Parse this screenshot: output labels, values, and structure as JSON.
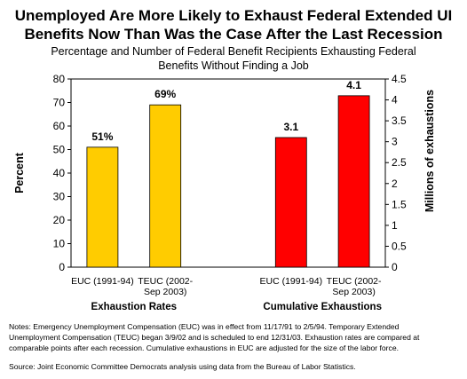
{
  "title_lines": [
    "Unemployed Are More Likely to Exhaust Federal Extended UI",
    "Benefits Now Than Was the Case After the Last Recession"
  ],
  "subtitle_lines": [
    "Percentage and Number of Federal Benefit Recipients Exhausting Federal",
    "Benefits Without Finding a Job"
  ],
  "chart_data": {
    "type": "bar",
    "title": "Unemployed Are More Likely to Exhaust Federal Extended UI Benefits Now Than Was the Case After the Last Recession",
    "subtitle": "Percentage and Number of Federal Benefit Recipients Exhausting Federal Benefits Without Finding a Job",
    "ylabel": "Percent",
    "y2label": "Millions of exhaustions",
    "ylim": [
      0,
      80
    ],
    "yticks": [
      "0",
      "10",
      "20",
      "30",
      "40",
      "50",
      "60",
      "70",
      "80"
    ],
    "y2lim": [
      0,
      4.5
    ],
    "y2ticks": [
      "0",
      "0.5",
      "1",
      "1.5",
      "2",
      "2.5",
      "3",
      "3.5",
      "4",
      "4.5"
    ],
    "grid": false,
    "groups": [
      {
        "name": "Exhaustion Rates",
        "axis": "left",
        "color": "#ffcc00",
        "categories": [
          [
            "EUC (1991-94)"
          ],
          [
            "TEUC (2002-",
            "Sep 2003)"
          ]
        ],
        "values": [
          51,
          69
        ],
        "labels": [
          "51%",
          "69%"
        ]
      },
      {
        "name": "Cumulative Exhaustions",
        "axis": "right",
        "color": "#ff0000",
        "categories": [
          [
            "EUC (1991-94)"
          ],
          [
            "TEUC (2002-",
            "Sep 2003)"
          ]
        ],
        "values": [
          3.1,
          4.1
        ],
        "labels": [
          "3.1",
          "4.1"
        ]
      }
    ]
  },
  "notes_lines": [
    "Notes: Emergency Unemployment Compensation (EUC) was in effect from 11/17/91 to 2/5/94.  Temporary Extended",
    "Unemployment Compensation (TEUC) began 3/9/02 and is scheduled to end 12/31/03.  Exhaustion rates are compared at",
    "comparable points after each recession.  Cumulative exhaustions in EUC are adjusted for the size of the labor force."
  ],
  "source": "Source: Joint Economic Committee Democrats analysis using data from the Bureau of Labor Statistics."
}
